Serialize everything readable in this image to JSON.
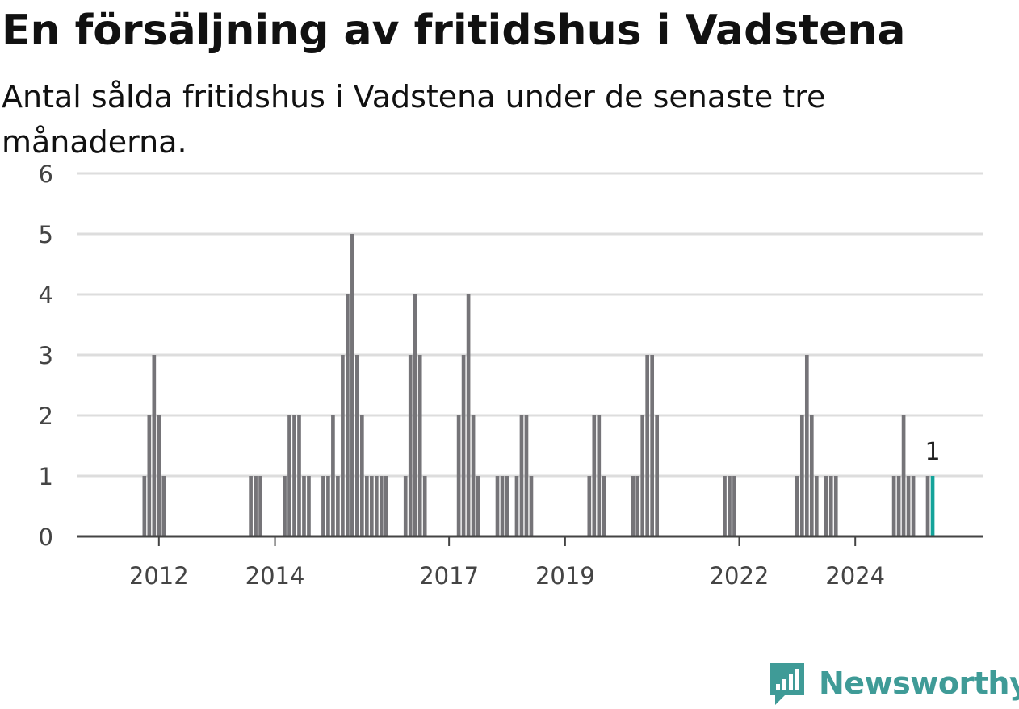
{
  "header": {
    "title": "En försäljning av fritidshus i Vadstena",
    "subtitle": "Antal sålda fritidshus i Vadstena under de senaste tre månaderna."
  },
  "brand": {
    "name": "Newsworthy",
    "color": "#3f9b97",
    "icon": "newsworthy-logo-icon"
  },
  "colors": {
    "bar": "#757478",
    "highlight": "#14a39a",
    "grid": "#dddddd",
    "axis": "#444444"
  },
  "chart_data": {
    "type": "bar",
    "title": "En försäljning av fritidshus i Vadstena",
    "subtitle": "Antal sålda fritidshus i Vadstena under de senaste tre månaderna.",
    "xlabel": "",
    "ylabel": "",
    "ylim": [
      0,
      6
    ],
    "yticks": [
      0,
      1,
      2,
      3,
      4,
      5,
      6
    ],
    "grid": true,
    "legend": "none",
    "x_range": [
      "2011-01",
      "2025-04"
    ],
    "xticks": [
      {
        "label": "2012",
        "x": "2012-06"
      },
      {
        "label": "2014",
        "x": "2014-06"
      },
      {
        "label": "2017",
        "x": "2017-06"
      },
      {
        "label": "2019",
        "x": "2019-06"
      },
      {
        "label": "2022",
        "x": "2022-06"
      },
      {
        "label": "2024",
        "x": "2024-06"
      }
    ],
    "bars": [
      {
        "x": "2012-03",
        "y": 1
      },
      {
        "x": "2012-04",
        "y": 2
      },
      {
        "x": "2012-05",
        "y": 3
      },
      {
        "x": "2012-06",
        "y": 2
      },
      {
        "x": "2012-07",
        "y": 1
      },
      {
        "x": "2014-01",
        "y": 1
      },
      {
        "x": "2014-02",
        "y": 1
      },
      {
        "x": "2014-03",
        "y": 1
      },
      {
        "x": "2014-08",
        "y": 1
      },
      {
        "x": "2014-09",
        "y": 2
      },
      {
        "x": "2014-10",
        "y": 2
      },
      {
        "x": "2014-11",
        "y": 2
      },
      {
        "x": "2014-12",
        "y": 1
      },
      {
        "x": "2015-01",
        "y": 1
      },
      {
        "x": "2015-04",
        "y": 1
      },
      {
        "x": "2015-05",
        "y": 1
      },
      {
        "x": "2015-06",
        "y": 2
      },
      {
        "x": "2015-07",
        "y": 1
      },
      {
        "x": "2015-08",
        "y": 3
      },
      {
        "x": "2015-09",
        "y": 4
      },
      {
        "x": "2015-10",
        "y": 5
      },
      {
        "x": "2015-11",
        "y": 3
      },
      {
        "x": "2015-12",
        "y": 2
      },
      {
        "x": "2016-01",
        "y": 1
      },
      {
        "x": "2016-02",
        "y": 1
      },
      {
        "x": "2016-03",
        "y": 1
      },
      {
        "x": "2016-04",
        "y": 1
      },
      {
        "x": "2016-05",
        "y": 1
      },
      {
        "x": "2016-09",
        "y": 1
      },
      {
        "x": "2016-10",
        "y": 3
      },
      {
        "x": "2016-11",
        "y": 4
      },
      {
        "x": "2016-12",
        "y": 3
      },
      {
        "x": "2017-01",
        "y": 1
      },
      {
        "x": "2017-08",
        "y": 2
      },
      {
        "x": "2017-09",
        "y": 3
      },
      {
        "x": "2017-10",
        "y": 4
      },
      {
        "x": "2017-11",
        "y": 2
      },
      {
        "x": "2017-12",
        "y": 1
      },
      {
        "x": "2018-04",
        "y": 1
      },
      {
        "x": "2018-05",
        "y": 1
      },
      {
        "x": "2018-06",
        "y": 1
      },
      {
        "x": "2018-08",
        "y": 1
      },
      {
        "x": "2018-09",
        "y": 2
      },
      {
        "x": "2018-10",
        "y": 2
      },
      {
        "x": "2018-11",
        "y": 1
      },
      {
        "x": "2019-11",
        "y": 1
      },
      {
        "x": "2019-12",
        "y": 2
      },
      {
        "x": "2020-01",
        "y": 2
      },
      {
        "x": "2020-02",
        "y": 1
      },
      {
        "x": "2020-08",
        "y": 1
      },
      {
        "x": "2020-09",
        "y": 1
      },
      {
        "x": "2020-10",
        "y": 2
      },
      {
        "x": "2020-11",
        "y": 3
      },
      {
        "x": "2020-12",
        "y": 3
      },
      {
        "x": "2021-01",
        "y": 2
      },
      {
        "x": "2022-03",
        "y": 1
      },
      {
        "x": "2022-04",
        "y": 1
      },
      {
        "x": "2022-05",
        "y": 1
      },
      {
        "x": "2023-06",
        "y": 1
      },
      {
        "x": "2023-07",
        "y": 2
      },
      {
        "x": "2023-08",
        "y": 3
      },
      {
        "x": "2023-09",
        "y": 2
      },
      {
        "x": "2023-10",
        "y": 1
      },
      {
        "x": "2023-12",
        "y": 1
      },
      {
        "x": "2024-01",
        "y": 1
      },
      {
        "x": "2024-02",
        "y": 1
      },
      {
        "x": "2025-02",
        "y": 1
      },
      {
        "x": "2025-03",
        "y": 1
      },
      {
        "x": "2025-04",
        "y": 2
      },
      {
        "x": "2025-05",
        "y": 1
      },
      {
        "x": "2025-06",
        "y": 1
      },
      {
        "x": "2025-09",
        "y": 1
      }
    ],
    "highlight": {
      "x": "2025-10",
      "y": 1,
      "label": "1"
    }
  }
}
